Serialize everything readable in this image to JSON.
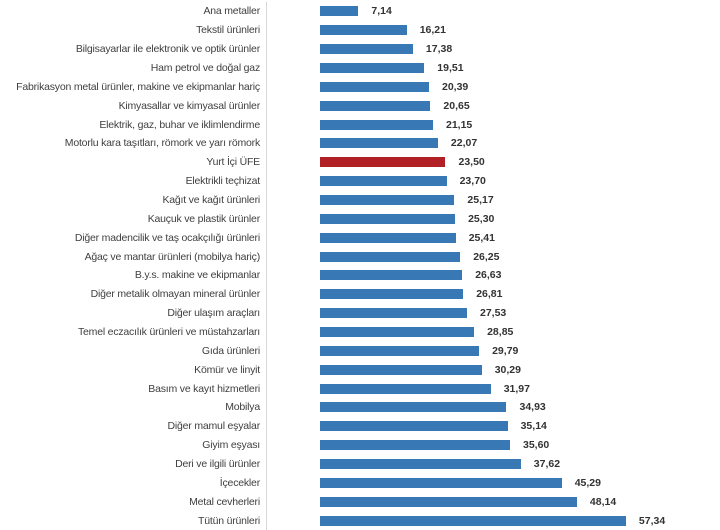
{
  "chart_data": {
    "type": "bar",
    "orientation": "horizontal",
    "title": "",
    "xlabel": "",
    "ylabel": "",
    "grid": false,
    "legend": false,
    "xlim": [
      -10,
      75
    ],
    "value_format": "comma-decimal",
    "highlight_category": "Yurt İçi ÜFE",
    "highlight_index": 8,
    "colors": {
      "bar": "#3878B4",
      "highlight_bar": "#B12025",
      "axis_line": "#D9D9D9",
      "category_text": "#404040",
      "value_text": "#333333",
      "background": "#FFFFFF"
    },
    "categories": [
      "Ana metaller",
      "Tekstil ürünleri",
      "Bilgisayarlar ile elektronik ve optik ürünler",
      "Ham petrol ve doğal gaz",
      "Fabrikasyon metal ürünler, makine ve ekipmanlar hariç",
      "Kimyasallar ve kimyasal ürünler",
      "Elektrik, gaz, buhar ve iklimlendirme",
      "Motorlu kara taşıtları, römork ve yarı römork",
      "Yurt İçi ÜFE",
      "Elektrikli teçhizat",
      "Kağıt ve kağıt ürünleri",
      "Kauçuk ve plastik ürünler",
      "Diğer madencilik ve taş ocakçılığı ürünleri",
      "Ağaç ve mantar ürünleri (mobilya hariç)",
      "B.y.s. makine ve ekipmanlar",
      "Diğer metalik olmayan mineral ürünler",
      "Diğer ulaşım araçları",
      "Temel eczacılık ürünleri ve müstahzarları",
      "Gıda ürünleri",
      "Kömür ve linyit",
      "Basım ve kayıt hizmetleri",
      "Mobilya",
      "Diğer mamul eşyalar",
      "Giyim eşyası",
      "Deri ve ilgili ürünler",
      "İçecekler",
      "Metal cevherleri",
      "Tütün ürünleri"
    ],
    "values": [
      7.14,
      16.21,
      17.38,
      19.51,
      20.39,
      20.65,
      21.15,
      22.07,
      23.5,
      23.7,
      25.17,
      25.3,
      25.41,
      26.25,
      26.63,
      26.81,
      27.53,
      28.85,
      29.79,
      30.29,
      31.97,
      34.93,
      35.14,
      35.6,
      37.62,
      45.29,
      48.14,
      57.34
    ],
    "value_labels": [
      "7,14",
      "16,21",
      "17,38",
      "19,51",
      "20,39",
      "20,65",
      "21,15",
      "22,07",
      "23,50",
      "23,70",
      "25,17",
      "25,30",
      "25,41",
      "26,25",
      "26,63",
      "26,81",
      "27,53",
      "28,85",
      "29,79",
      "30,29",
      "31,97",
      "34,93",
      "35,14",
      "35,60",
      "37,62",
      "45,29",
      "48,14",
      "57,34"
    ]
  }
}
